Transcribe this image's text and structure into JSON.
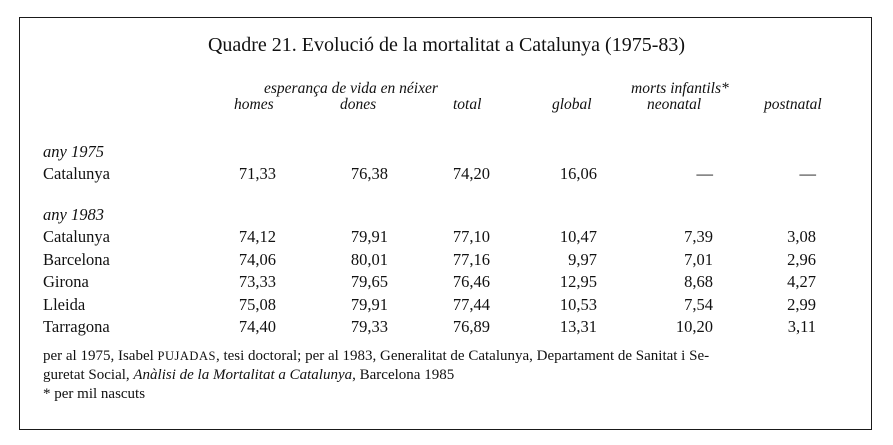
{
  "title": "Quadre 21. Evolució de la mortalitat a Catalunya (1975-83)",
  "header": {
    "group_life": "esperança de vida en néixer",
    "group_infant": "morts infantils*",
    "columns": [
      "homes",
      "dones",
      "total",
      "global",
      "neonatal",
      "postnatal"
    ]
  },
  "sections": [
    {
      "label": "any 1975",
      "rows": [
        {
          "name": "Catalunya",
          "values": [
            "71,33",
            "76,38",
            "74,20",
            "16,06",
            "—",
            "—"
          ]
        }
      ]
    },
    {
      "label": "any 1983",
      "rows": [
        {
          "name": "Catalunya",
          "values": [
            "74,12",
            "79,91",
            "77,10",
            "10,47",
            "7,39",
            "3,08"
          ]
        },
        {
          "name": "Barcelona",
          "values": [
            "74,06",
            "80,01",
            "77,16",
            "9,97",
            "7,01",
            "2,96"
          ]
        },
        {
          "name": "Girona",
          "values": [
            "73,33",
            "79,65",
            "76,46",
            "12,95",
            "8,68",
            "4,27"
          ]
        },
        {
          "name": "Lleida",
          "values": [
            "75,08",
            "79,91",
            "77,44",
            "10,53",
            "7,54",
            "2,99"
          ]
        },
        {
          "name": "Tarragona",
          "values": [
            "74,40",
            "79,33",
            "76,89",
            "13,31",
            "10,20",
            "3,11"
          ]
        }
      ]
    }
  ],
  "notes": {
    "line1_a": "per al 1975, Isabel ",
    "line1_author": "PUJADAS",
    "line1_b": ", tesi doctoral; per al 1983, Generalitat de Catalunya, Departament de Sanitat i Se-",
    "line2_a": "guretat Social, ",
    "line2_work": "Anàlisi de la Mortalitat a Catalunya",
    "line2_b": ", Barcelona 1985",
    "line3": "* per mil nascuts"
  }
}
